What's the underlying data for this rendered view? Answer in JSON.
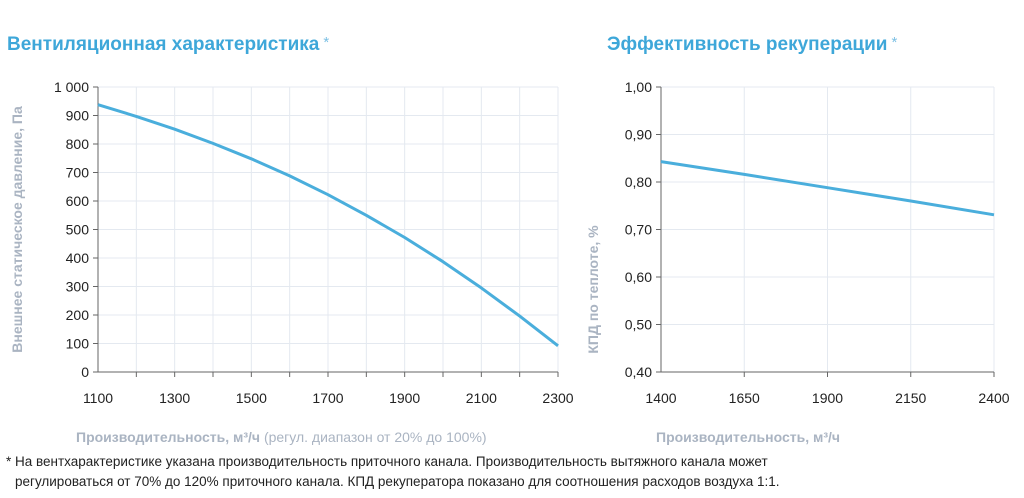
{
  "colors": {
    "accent": "#3ea7d9",
    "line": "#4aaedc",
    "grid": "#e4e9f0",
    "axis_label": "#aab4c2"
  },
  "chart_data": [
    {
      "type": "line",
      "title": "Вентиляционная характеристика",
      "title_mark": "*",
      "xlabel": "Производительность, м³/ч",
      "xlabel_note": "(регул. диапазон от 20% до 100%)",
      "ylabel": "Внешнее статическое давление, Па",
      "xlim": [
        1100,
        2300
      ],
      "ylim": [
        0,
        1000
      ],
      "xticks": [
        "1100",
        "1300",
        "1500",
        "1700",
        "1900",
        "2100",
        "2300"
      ],
      "yticks": [
        "0",
        "100",
        "200",
        "300",
        "400",
        "500",
        "600",
        "700",
        "800",
        "900",
        "1 000"
      ],
      "grid": true,
      "x": [
        1100,
        1200,
        1300,
        1400,
        1500,
        1600,
        1700,
        1800,
        1900,
        2000,
        2100,
        2200,
        2300
      ],
      "y": [
        938,
        897,
        852,
        802,
        748,
        688,
        622,
        550,
        472,
        387,
        295,
        196,
        92
      ]
    },
    {
      "type": "line",
      "title": "Эффективность рекуперации",
      "title_mark": "*",
      "xlabel": "Производительность, м³/ч",
      "ylabel": "КПД по теплоте, %",
      "xlim": [
        1400,
        2400
      ],
      "ylim": [
        0.4,
        1.0
      ],
      "xticks": [
        "1400",
        "1650",
        "1900",
        "2150",
        "2400"
      ],
      "yticks": [
        "0,40",
        "0,50",
        "0,60",
        "0,70",
        "0,80",
        "0,90",
        "1,00"
      ],
      "grid": true,
      "x": [
        1400,
        1650,
        1900,
        2150,
        2400
      ],
      "y": [
        0.843,
        0.816,
        0.788,
        0.76,
        0.731
      ]
    }
  ],
  "footnote": {
    "line1": "* На вентхарактеристике указана производительность приточного канала. Производительность вытяжного канала может",
    "line2": "регулироваться от 70% до 120% приточного канала. КПД рекуператора показано для соотношения расходов воздуха 1:1."
  }
}
